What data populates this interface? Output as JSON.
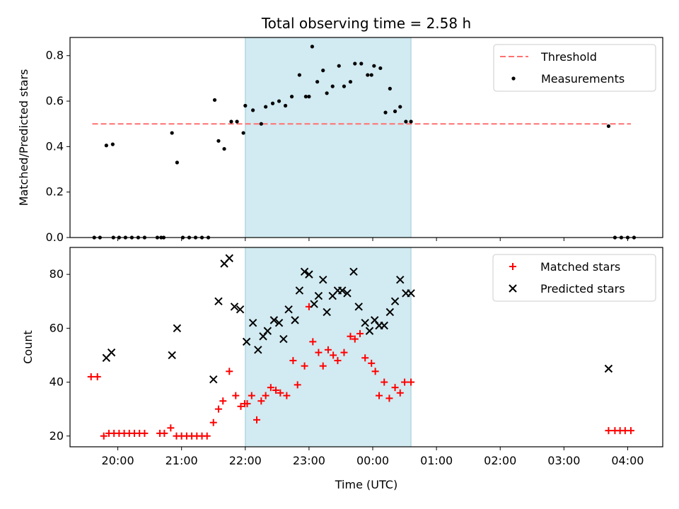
{
  "chart_data": [
    {
      "type": "scatter",
      "title": "Total observing time = 2.58 h",
      "ylabel": "Matched/Predicted stars",
      "xlabel": "",
      "xlim": [
        19.25,
        4.55
      ],
      "ylim": [
        0,
        0.88
      ],
      "yticks": [
        "0.0",
        "0.2",
        "0.4",
        "0.6",
        "0.8"
      ],
      "ytick_values": [
        0,
        0.2,
        0.4,
        0.6,
        0.8
      ],
      "shaded_span": [
        22.0,
        0.6
      ],
      "threshold": {
        "name": "Threshold",
        "value": 0.5,
        "x_range": [
          19.6,
          4.05
        ],
        "color": "#ff7070"
      },
      "legend": {
        "placement": "top-right",
        "entries": [
          "Threshold",
          "Measurements"
        ]
      },
      "series": [
        {
          "name": "Measurements",
          "marker": "dot",
          "color": "#000000",
          "x": [
            19.63,
            19.72,
            19.82,
            19.92,
            19.93,
            20.02,
            20.12,
            20.22,
            20.32,
            20.42,
            20.62,
            20.68,
            20.72,
            20.85,
            20.93,
            21.02,
            21.12,
            21.22,
            21.32,
            21.42,
            21.52,
            21.58,
            21.67,
            21.78,
            21.87,
            21.97,
            22.0,
            22.12,
            22.25,
            22.32,
            22.43,
            22.53,
            22.63,
            22.73,
            22.85,
            22.95,
            23.0,
            23.05,
            23.13,
            23.22,
            23.28,
            23.37,
            23.47,
            23.55,
            23.65,
            23.72,
            23.82,
            23.92,
            23.98,
            24.02,
            24.12,
            24.2,
            24.27,
            24.35,
            24.43,
            24.52,
            24.6,
            27.7,
            27.8,
            27.9,
            28.0,
            28.1
          ],
          "y": [
            0.0,
            0.0,
            0.405,
            0.41,
            0.0,
            0.0,
            0.0,
            0.0,
            0.0,
            0.0,
            0.0,
            0.0,
            0.0,
            0.46,
            0.33,
            0.0,
            0.0,
            0.0,
            0.0,
            0.0,
            0.605,
            0.425,
            0.39,
            0.51,
            0.51,
            0.46,
            0.58,
            0.56,
            0.5,
            0.575,
            0.59,
            0.6,
            0.58,
            0.62,
            0.715,
            0.62,
            0.62,
            0.84,
            0.685,
            0.735,
            0.635,
            0.665,
            0.755,
            0.665,
            0.685,
            0.765,
            0.765,
            0.715,
            0.715,
            0.755,
            0.745,
            0.55,
            0.655,
            0.555,
            0.575,
            0.51,
            0.51,
            0.49,
            0.0,
            0.0,
            0.0,
            0.0
          ]
        }
      ]
    },
    {
      "type": "scatter",
      "title": "",
      "ylabel": "Count",
      "xlabel": "Time (UTC)",
      "xlim": [
        19.25,
        4.55
      ],
      "ylim": [
        16,
        90
      ],
      "yticks": [
        "20",
        "40",
        "60",
        "80"
      ],
      "ytick_values": [
        20,
        40,
        60,
        80
      ],
      "xticks": [
        "20:00",
        "21:00",
        "22:00",
        "23:00",
        "00:00",
        "01:00",
        "02:00",
        "03:00",
        "04:00"
      ],
      "xtick_values": [
        20,
        21,
        22,
        23,
        24,
        25,
        26,
        27,
        28
      ],
      "shaded_span": [
        22.0,
        0.6
      ],
      "legend": {
        "placement": "top-right",
        "entries": [
          "Matched stars",
          "Predicted stars"
        ]
      },
      "series": [
        {
          "name": "Matched stars",
          "marker": "plus",
          "color": "#ff0000",
          "x": [
            19.58,
            19.68,
            19.78,
            19.86,
            19.94,
            20.02,
            20.1,
            20.18,
            20.26,
            20.34,
            20.42,
            20.66,
            20.73,
            20.83,
            20.92,
            21.0,
            21.08,
            21.16,
            21.24,
            21.32,
            21.4,
            21.5,
            21.58,
            21.65,
            21.75,
            21.85,
            21.93,
            21.99,
            22.03,
            22.1,
            22.18,
            22.25,
            22.32,
            22.4,
            22.48,
            22.55,
            22.65,
            22.75,
            22.82,
            22.93,
            23.0,
            23.06,
            23.15,
            23.22,
            23.3,
            23.38,
            23.45,
            23.55,
            23.65,
            23.72,
            23.8,
            23.88,
            23.98,
            24.04,
            24.1,
            24.18,
            24.26,
            24.35,
            24.43,
            24.5,
            24.6,
            27.7,
            27.8,
            27.88,
            27.96,
            28.05
          ],
          "y": [
            42,
            42,
            20,
            21,
            21,
            21,
            21,
            21,
            21,
            21,
            21,
            21,
            21,
            23,
            20,
            20,
            20,
            20,
            20,
            20,
            20,
            25,
            30,
            33,
            44,
            35,
            31,
            32,
            32,
            35,
            26,
            33,
            35,
            38,
            37,
            36,
            35,
            48,
            39,
            46,
            68,
            55,
            51,
            46,
            52,
            50,
            48,
            51,
            57,
            56,
            58,
            49,
            47,
            44,
            35,
            40,
            34,
            38,
            36,
            40,
            40,
            22,
            22,
            22,
            22,
            22
          ]
        },
        {
          "name": "Predicted stars",
          "marker": "x",
          "color": "#000000",
          "x": [
            19.82,
            19.9,
            20.85,
            20.93,
            21.5,
            21.58,
            21.67,
            21.75,
            21.83,
            21.92,
            22.02,
            22.12,
            22.2,
            22.28,
            22.35,
            22.45,
            22.53,
            22.6,
            22.68,
            22.78,
            22.85,
            22.93,
            23.0,
            23.08,
            23.15,
            23.22,
            23.28,
            23.37,
            23.45,
            23.52,
            23.6,
            23.7,
            23.78,
            23.88,
            23.95,
            24.03,
            24.1,
            24.18,
            24.27,
            24.35,
            24.43,
            24.52,
            24.6,
            27.7
          ],
          "y": [
            49,
            51,
            50,
            60,
            41,
            70,
            84,
            86,
            68,
            67,
            55,
            62,
            52,
            57,
            59,
            63,
            62,
            56,
            67,
            63,
            74,
            81,
            80,
            69,
            72,
            78,
            66,
            72,
            74,
            74,
            73,
            81,
            68,
            62,
            59,
            63,
            61,
            61,
            66,
            70,
            78,
            73,
            73,
            45
          ]
        }
      ]
    }
  ]
}
